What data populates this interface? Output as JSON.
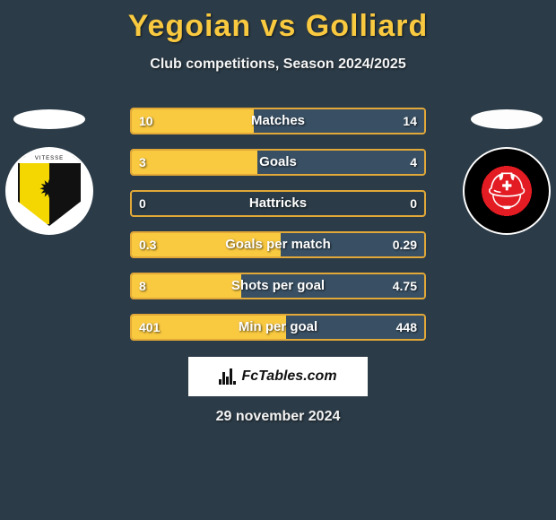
{
  "title_text": "Yegoian vs Golliard",
  "title_color": "#f9c940",
  "title_fontsize": 34,
  "subtitle": "Club competitions, Season 2024/2025",
  "subtitle_fontsize": 16,
  "background_color": "#2b3b47",
  "bar_border_color": "#e2a838",
  "left_fill_color": "#f9c940",
  "right_fill_color": "#395064",
  "text_color": "#fefefe",
  "left_club_badge": "vitesse",
  "right_club_badge": "helmond",
  "rows": [
    {
      "label": "Matches",
      "left": "10",
      "right": "14",
      "left_pct": 41.7
    },
    {
      "label": "Goals",
      "left": "3",
      "right": "4",
      "left_pct": 42.9
    },
    {
      "label": "Hattricks",
      "left": "0",
      "right": "0",
      "left_pct": 0.0
    },
    {
      "label": "Goals per match",
      "left": "0.3",
      "right": "0.29",
      "left_pct": 50.8
    },
    {
      "label": "Shots per goal",
      "left": "8",
      "right": "4.75",
      "left_pct": 37.3
    },
    {
      "label": "Min per goal",
      "left": "401",
      "right": "448",
      "left_pct": 52.8
    }
  ],
  "brand": "FcTables.com",
  "brand_mini_bar_heights": [
    6,
    14,
    9,
    18,
    4
  ],
  "date_text": "29 november 2024"
}
